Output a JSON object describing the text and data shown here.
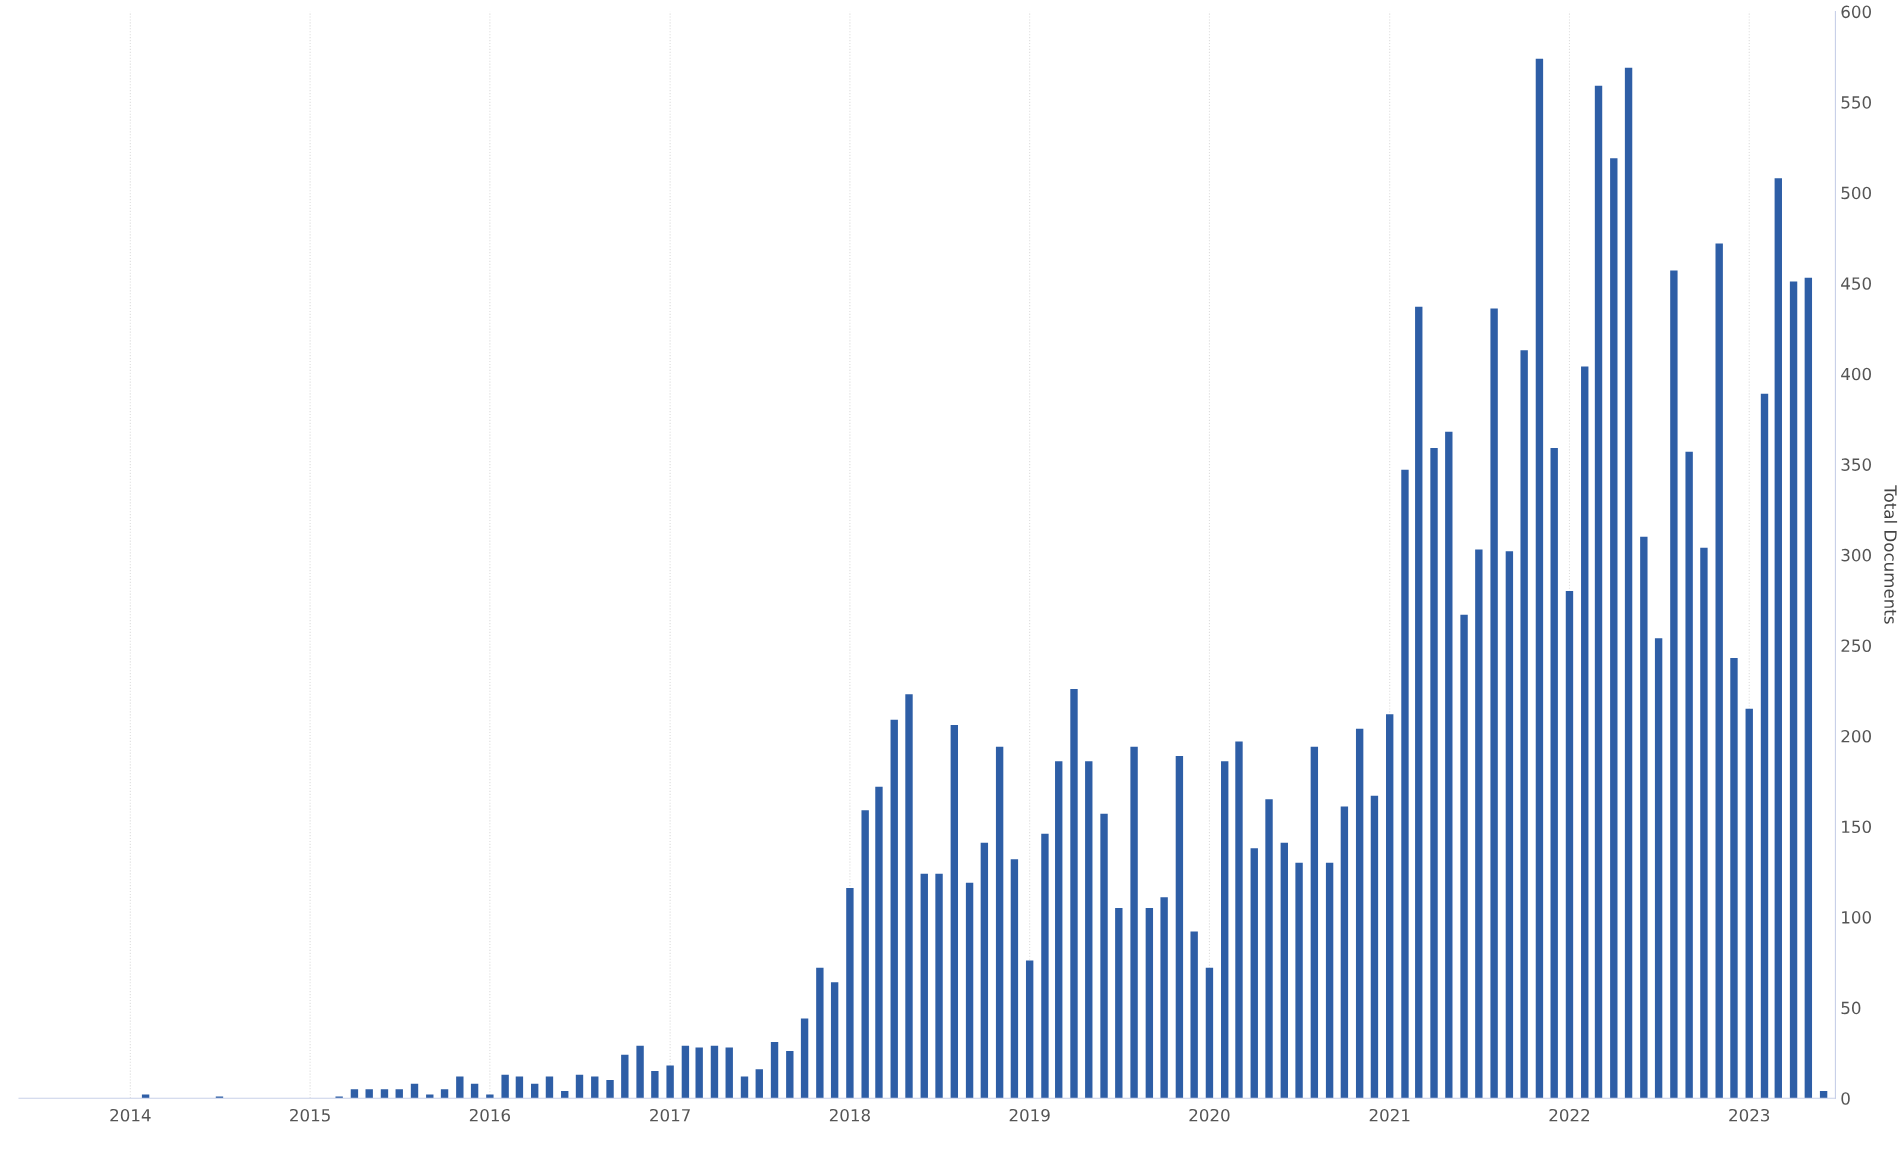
{
  "chart_data": {
    "type": "bar",
    "ylabel": "Total Documents",
    "x": [
      "2014-02",
      "2014-07",
      "2015-03",
      "2015-04",
      "2015-05",
      "2015-06",
      "2015-07",
      "2015-08",
      "2015-09",
      "2015-10",
      "2015-11",
      "2015-12",
      "2016-01",
      "2016-02",
      "2016-03",
      "2016-04",
      "2016-05",
      "2016-06",
      "2016-07",
      "2016-08",
      "2016-09",
      "2016-10",
      "2016-11",
      "2016-12",
      "2017-01",
      "2017-02",
      "2017-03",
      "2017-04",
      "2017-05",
      "2017-06",
      "2017-07",
      "2017-08",
      "2017-09",
      "2017-10",
      "2017-11",
      "2017-12",
      "2018-01",
      "2018-02",
      "2018-03",
      "2018-04",
      "2018-05",
      "2018-06",
      "2018-07",
      "2018-08",
      "2018-09",
      "2018-10",
      "2018-11",
      "2018-12",
      "2019-01",
      "2019-02",
      "2019-03",
      "2019-04",
      "2019-05",
      "2019-06",
      "2019-07",
      "2019-08",
      "2019-09",
      "2019-10",
      "2019-11",
      "2019-12",
      "2020-01",
      "2020-02",
      "2020-03",
      "2020-04",
      "2020-05",
      "2020-06",
      "2020-07",
      "2020-08",
      "2020-09",
      "2020-10",
      "2020-11",
      "2020-12",
      "2021-01",
      "2021-02",
      "2021-03",
      "2021-04",
      "2021-05",
      "2021-06",
      "2021-07",
      "2021-08",
      "2021-09",
      "2021-10",
      "2021-11",
      "2021-12",
      "2022-01",
      "2022-02",
      "2022-03",
      "2022-04",
      "2022-05",
      "2022-06",
      "2022-07",
      "2022-08",
      "2022-09",
      "2022-10",
      "2022-11",
      "2022-12",
      "2023-01",
      "2023-02",
      "2023-03",
      "2023-04",
      "2023-05",
      "2023-06"
    ],
    "series": [
      {
        "color": "#2e5ea6",
        "values": [
          2,
          1,
          1,
          5,
          5,
          5,
          5,
          8,
          2,
          5,
          12,
          8,
          2,
          13,
          12,
          8,
          12,
          4,
          13,
          12,
          10,
          24,
          29,
          15,
          18,
          29,
          28,
          29,
          28,
          12,
          16,
          31,
          26,
          44,
          72,
          64,
          116,
          159,
          172,
          209,
          223,
          124,
          124,
          206,
          119,
          141,
          194,
          132,
          76,
          146,
          186,
          226,
          186,
          157,
          105,
          194,
          105,
          111,
          189,
          92,
          72,
          186,
          197,
          138,
          165,
          141,
          130,
          194,
          130,
          161,
          204,
          167,
          212,
          347,
          437,
          359,
          368,
          267,
          303,
          436,
          302,
          413,
          574,
          359,
          280,
          404,
          559,
          519,
          569,
          310,
          254,
          457,
          357,
          304,
          472,
          243,
          215,
          389,
          508,
          451,
          453,
          4
        ]
      }
    ],
    "xlim": [
      "2013-05-20",
      "2023-06-25"
    ],
    "xticks": [
      {
        "value": "2014",
        "label": "2014"
      },
      {
        "value": "2015",
        "label": "2015"
      },
      {
        "value": "2016",
        "label": "2016"
      },
      {
        "value": "2017",
        "label": "2017"
      },
      {
        "value": "2018",
        "label": "2018"
      },
      {
        "value": "2019",
        "label": "2019"
      },
      {
        "value": "2020",
        "label": "2020"
      },
      {
        "value": "2021",
        "label": "2021"
      },
      {
        "value": "2022",
        "label": "2022"
      },
      {
        "value": "2023",
        "label": "2023"
      }
    ],
    "ylim": [
      0,
      600
    ],
    "yticks": [
      0,
      50,
      100,
      150,
      200,
      250,
      300,
      350,
      400,
      450,
      500,
      550,
      600
    ],
    "grid": "x"
  }
}
